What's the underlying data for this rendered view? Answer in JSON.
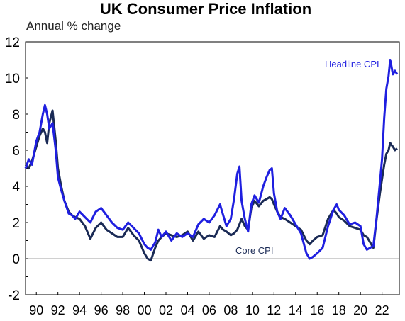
{
  "chart_data": {
    "type": "line",
    "title": "UK Consumer Price Inflation",
    "ylabel": "Annual % change",
    "ylim": [
      -2,
      12
    ],
    "yticks": [
      "12",
      "10",
      "8",
      "6",
      "4",
      "2",
      "0",
      "-2"
    ],
    "xlim": [
      1989,
      2023.6
    ],
    "xticks": [
      "90",
      "92",
      "94",
      "96",
      "98",
      "00",
      "02",
      "04",
      "06",
      "08",
      "10",
      "12",
      "14",
      "16",
      "18",
      "20",
      "22"
    ],
    "grid": false,
    "colors": {
      "headline": "#1f1fe0",
      "core": "#1a2a55",
      "zero_line": "#a0a0a0",
      "frame": "#000000"
    },
    "series": [
      {
        "name": "Headline CPI",
        "color": "#1f1fe0",
        "x": [
          1989.0,
          1989.3,
          1989.6,
          1990.0,
          1990.3,
          1990.6,
          1990.8,
          1991.0,
          1991.2,
          1991.5,
          1991.8,
          1992.0,
          1992.3,
          1992.6,
          1993.0,
          1993.3,
          1993.6,
          1994.0,
          1994.5,
          1995.0,
          1995.5,
          1996.0,
          1996.5,
          1997.0,
          1997.5,
          1998.0,
          1998.5,
          1999.0,
          1999.5,
          2000.0,
          2000.3,
          2000.6,
          2001.0,
          2001.3,
          2001.6,
          2002.0,
          2002.5,
          2003.0,
          2003.5,
          2004.0,
          2004.5,
          2005.0,
          2005.5,
          2006.0,
          2006.5,
          2007.0,
          2007.3,
          2007.6,
          2008.0,
          2008.3,
          2008.6,
          2008.8,
          2009.0,
          2009.3,
          2009.6,
          2009.9,
          2010.2,
          2010.6,
          2011.0,
          2011.3,
          2011.6,
          2011.8,
          2012.0,
          2012.3,
          2012.6,
          2013.0,
          2013.5,
          2014.0,
          2014.5,
          2015.0,
          2015.3,
          2015.6,
          2016.0,
          2016.5,
          2017.0,
          2017.5,
          2017.8,
          2018.0,
          2018.5,
          2019.0,
          2019.5,
          2020.0,
          2020.3,
          2020.6,
          2020.9,
          2021.2,
          2021.5,
          2021.8,
          2022.0,
          2022.2,
          2022.4,
          2022.6,
          2022.75,
          2022.85,
          2023.0,
          2023.2,
          2023.4
        ],
        "values": [
          5.0,
          5.5,
          5.2,
          6.5,
          7.0,
          8.0,
          8.5,
          8.0,
          7.2,
          7.5,
          6.0,
          4.5,
          3.8,
          3.2,
          2.5,
          2.4,
          2.2,
          2.6,
          2.3,
          2.0,
          2.6,
          2.8,
          2.4,
          2.0,
          1.7,
          1.6,
          2.0,
          1.7,
          1.4,
          0.8,
          0.6,
          0.5,
          0.9,
          1.6,
          1.2,
          1.5,
          1.0,
          1.4,
          1.2,
          1.4,
          1.2,
          1.9,
          2.2,
          2.0,
          2.4,
          3.0,
          2.4,
          1.8,
          2.2,
          3.3,
          4.7,
          5.1,
          3.2,
          2.2,
          1.5,
          3.0,
          3.5,
          3.1,
          4.0,
          4.5,
          4.9,
          5.0,
          3.6,
          2.6,
          2.2,
          2.8,
          2.4,
          1.9,
          1.4,
          0.3,
          0.0,
          0.1,
          0.3,
          0.6,
          1.8,
          2.7,
          3.0,
          2.7,
          2.4,
          1.9,
          2.0,
          1.8,
          0.8,
          0.5,
          0.6,
          0.7,
          2.3,
          4.2,
          5.5,
          7.8,
          9.4,
          10.1,
          11.0,
          10.7,
          10.2,
          10.4,
          10.2
        ]
      },
      {
        "name": "Core CPI",
        "color": "#1a2a55",
        "x": [
          1989.0,
          1989.3,
          1989.6,
          1990.0,
          1990.3,
          1990.6,
          1990.8,
          1991.0,
          1991.2,
          1991.5,
          1991.8,
          1992.0,
          1992.3,
          1992.6,
          1993.0,
          1993.3,
          1993.6,
          1994.0,
          1994.5,
          1995.0,
          1995.5,
          1996.0,
          1996.5,
          1997.0,
          1997.5,
          1998.0,
          1998.5,
          1999.0,
          1999.5,
          2000.0,
          2000.3,
          2000.6,
          2001.0,
          2001.3,
          2001.6,
          2002.0,
          2002.5,
          2003.0,
          2003.5,
          2004.0,
          2004.5,
          2005.0,
          2005.5,
          2006.0,
          2006.5,
          2007.0,
          2007.3,
          2007.6,
          2008.0,
          2008.3,
          2008.6,
          2008.8,
          2009.0,
          2009.3,
          2009.6,
          2009.9,
          2010.2,
          2010.6,
          2011.0,
          2011.3,
          2011.6,
          2011.8,
          2012.0,
          2012.3,
          2012.6,
          2013.0,
          2013.5,
          2014.0,
          2014.5,
          2015.0,
          2015.3,
          2015.6,
          2016.0,
          2016.5,
          2017.0,
          2017.5,
          2017.8,
          2018.0,
          2018.5,
          2019.0,
          2019.5,
          2020.0,
          2020.3,
          2020.6,
          2020.9,
          2021.2,
          2021.5,
          2021.8,
          2022.0,
          2022.2,
          2022.4,
          2022.6,
          2022.75,
          2022.85,
          2023.0,
          2023.2,
          2023.4
        ],
        "values": [
          5.2,
          5.0,
          5.4,
          6.2,
          6.8,
          7.2,
          7.0,
          6.4,
          7.5,
          8.2,
          6.5,
          5.0,
          4.0,
          3.2,
          2.6,
          2.4,
          2.3,
          2.2,
          1.8,
          1.1,
          1.7,
          2.0,
          1.6,
          1.4,
          1.2,
          1.2,
          1.7,
          1.3,
          1.0,
          0.3,
          0.0,
          -0.1,
          0.6,
          1.0,
          1.2,
          1.4,
          1.3,
          1.2,
          1.3,
          1.5,
          1.0,
          1.5,
          1.1,
          1.3,
          1.2,
          1.8,
          1.6,
          1.5,
          1.3,
          1.4,
          1.6,
          1.9,
          2.2,
          1.8,
          1.6,
          2.8,
          3.2,
          2.9,
          3.2,
          3.3,
          3.4,
          3.3,
          3.0,
          2.6,
          2.3,
          2.2,
          2.0,
          1.8,
          1.6,
          1.0,
          0.8,
          1.0,
          1.2,
          1.3,
          2.2,
          2.7,
          2.5,
          2.3,
          2.1,
          1.8,
          1.7,
          1.6,
          1.3,
          1.2,
          0.9,
          0.6,
          2.2,
          3.6,
          4.4,
          5.2,
          5.8,
          6.0,
          6.4,
          6.3,
          6.2,
          6.0,
          6.1
        ]
      }
    ],
    "annotations": [
      {
        "text": "Headline CPI",
        "series": "Headline CPI"
      },
      {
        "text": "Core CPI",
        "series": "Core CPI"
      }
    ]
  }
}
